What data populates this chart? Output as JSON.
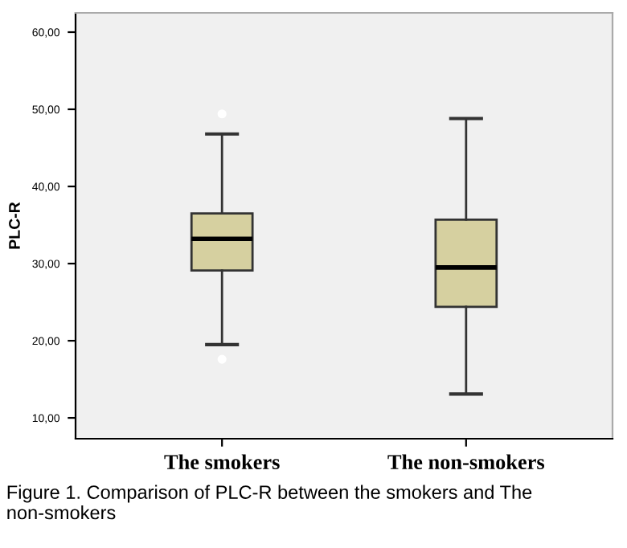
{
  "chart_data": {
    "type": "box",
    "ylabel": "PLC-R",
    "categories": [
      "The smokers",
      "The non-smokers"
    ],
    "boxes": [
      {
        "low": 19.5,
        "q1": 29.1,
        "median": 33.2,
        "q3": 36.5,
        "high": 46.8,
        "outliers": [
          49.4,
          17.6
        ]
      },
      {
        "low": 13.1,
        "q1": 24.4,
        "median": 29.5,
        "q3": 35.7,
        "high": 48.8
      }
    ],
    "color": "#d6d0a0",
    "ylim": [
      7.3,
      62.5
    ],
    "yticks": [
      {
        "value": 10,
        "label": "10,00"
      },
      {
        "value": 20,
        "label": "20,00"
      },
      {
        "value": 30,
        "label": "30,00"
      },
      {
        "value": 40,
        "label": "40,00"
      },
      {
        "value": 50,
        "label": "50,00"
      },
      {
        "value": 60,
        "label": "60,00"
      }
    ],
    "grid": false,
    "annotations": [
      "Figure 1. Comparison of PLC-R between the smokers and The non-smokers"
    ]
  }
}
